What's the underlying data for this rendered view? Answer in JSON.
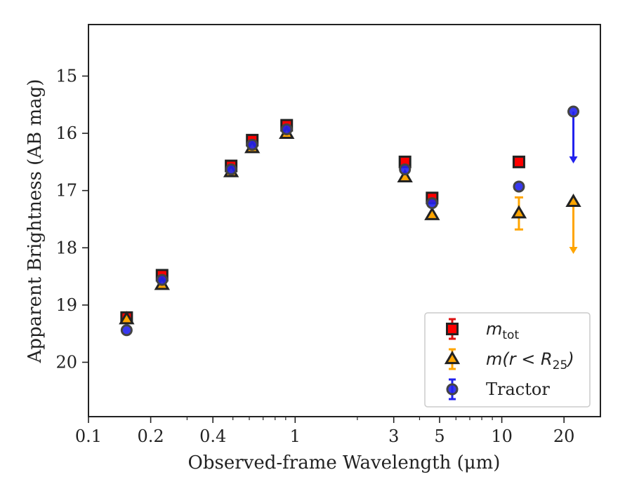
{
  "chart_data": {
    "type": "scatter",
    "xlabel": "Observed-frame Wavelength (μm)",
    "ylabel": "Apparent Brightness (AB mag)",
    "xscale": "log",
    "xlim": [
      0.1,
      30
    ],
    "ylim": [
      20.95,
      14.1
    ],
    "y_inverted": true,
    "x_ticks": [
      0.1,
      0.2,
      0.4,
      1,
      3,
      5,
      10,
      20
    ],
    "x_tick_labels": [
      "0.1",
      "0.2",
      "0.4",
      "1",
      "3",
      "5",
      "10",
      "20"
    ],
    "y_ticks": [
      15,
      16,
      17,
      18,
      19,
      20
    ],
    "y_tick_labels": [
      "15",
      "16",
      "17",
      "18",
      "19",
      "20"
    ],
    "legend_position": "lower right",
    "series": [
      {
        "key": "mtot",
        "legend": {
          "base": "m",
          "sub": "tot",
          "tail": ""
        },
        "marker": "square",
        "face": "#ff0000",
        "edge": "#222222",
        "errcolor": "#dd1111",
        "points": [
          {
            "x": 0.153,
            "y": 19.22
          },
          {
            "x": 0.227,
            "y": 18.48
          },
          {
            "x": 0.49,
            "y": 16.57
          },
          {
            "x": 0.62,
            "y": 16.12
          },
          {
            "x": 0.91,
            "y": 15.86
          },
          {
            "x": 3.4,
            "y": 16.5
          },
          {
            "x": 4.6,
            "y": 17.13
          },
          {
            "x": 12.1,
            "y": 16.5
          }
        ]
      },
      {
        "key": "mr25",
        "legend": {
          "base": "m",
          "sub": "",
          "tail": "(r < R",
          "sub2": "25",
          "tail2": ")"
        },
        "marker": "triangle",
        "face": "#ffa500",
        "edge": "#222222",
        "errcolor": "#ffa500",
        "points": [
          {
            "x": 0.153,
            "y": 19.25
          },
          {
            "x": 0.227,
            "y": 18.65
          },
          {
            "x": 0.49,
            "y": 16.68
          },
          {
            "x": 0.62,
            "y": 16.26
          },
          {
            "x": 0.91,
            "y": 16.01
          },
          {
            "x": 3.4,
            "y": 16.77
          },
          {
            "x": 4.6,
            "y": 17.43
          },
          {
            "x": 12.1,
            "y": 17.4,
            "err": 0.28
          },
          {
            "x": 22.2,
            "y": 17.2,
            "upper_limit": true
          }
        ]
      },
      {
        "key": "tractor",
        "legend": {
          "text": "Tractor"
        },
        "marker": "circle",
        "face": "#2222ee",
        "edge": "#444444",
        "errcolor": "#2222ee",
        "points": [
          {
            "x": 0.153,
            "y": 19.44
          },
          {
            "x": 0.227,
            "y": 18.56
          },
          {
            "x": 0.49,
            "y": 16.63
          },
          {
            "x": 0.62,
            "y": 16.2
          },
          {
            "x": 0.91,
            "y": 15.93
          },
          {
            "x": 3.4,
            "y": 16.63
          },
          {
            "x": 4.6,
            "y": 17.22
          },
          {
            "x": 12.1,
            "y": 16.93
          },
          {
            "x": 22.2,
            "y": 15.62,
            "upper_limit": true
          }
        ]
      }
    ]
  }
}
